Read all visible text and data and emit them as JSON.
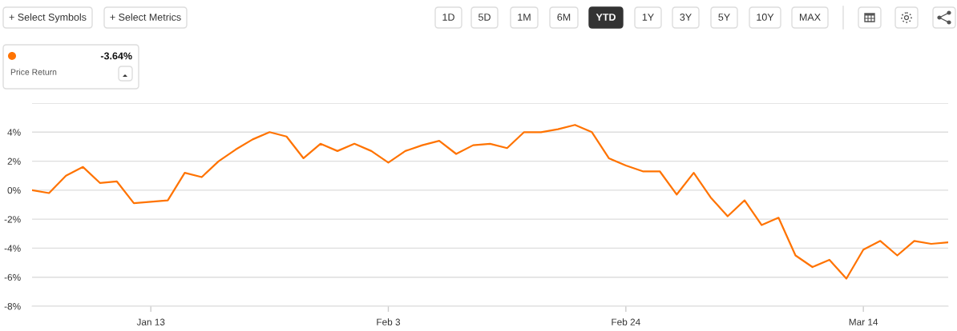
{
  "chart_data": {
    "type": "line",
    "categories": [
      null,
      null,
      null,
      null,
      null,
      null,
      null,
      "Jan 13",
      null,
      null,
      null,
      null,
      null,
      null,
      null,
      null,
      null,
      null,
      null,
      null,
      null,
      "Feb 3",
      null,
      null,
      null,
      null,
      null,
      null,
      null,
      null,
      null,
      null,
      null,
      null,
      null,
      "Feb 24",
      null,
      null,
      null,
      null,
      null,
      null,
      null,
      null,
      null,
      null,
      null,
      null,
      null,
      "Mar 14",
      null,
      null,
      null,
      null,
      null
    ],
    "series": [
      {
        "color": "#ff7300",
        "values": [
          0.0,
          -0.2,
          1.0,
          1.6,
          0.5,
          0.6,
          -0.9,
          -0.8,
          -0.7,
          1.2,
          0.9,
          2.0,
          2.8,
          3.5,
          4.0,
          3.7,
          2.2,
          3.2,
          2.7,
          3.2,
          2.7,
          1.9,
          2.7,
          3.1,
          3.4,
          2.5,
          3.1,
          3.2,
          2.9,
          4.0,
          4.0,
          4.2,
          4.5,
          4.0,
          2.2,
          1.7,
          1.3,
          1.3,
          -0.3,
          1.2,
          -0.5,
          -1.8,
          -0.7,
          -2.4,
          -1.9,
          -4.5,
          -5.3,
          -4.8,
          -6.1,
          -4.1,
          -3.5,
          -4.5,
          -3.5,
          -3.7,
          -3.6
        ]
      }
    ],
    "ylim": [
      -8,
      6
    ],
    "yticks": [
      {
        "value": -8,
        "label": "-8%"
      },
      {
        "value": -6,
        "label": "-6%"
      },
      {
        "value": -4,
        "label": "-4%"
      },
      {
        "value": -2,
        "label": "-2%"
      },
      {
        "value": 0,
        "label": "0%"
      },
      {
        "value": 2,
        "label": "2%"
      },
      {
        "value": 4,
        "label": "4%"
      },
      {
        "value": 6,
        "label": null
      }
    ],
    "grid": "y",
    "annotations": [
      "+ Select Symbols",
      "+ Select Metrics",
      "1D",
      "5D",
      "1M",
      "6M",
      "YTD",
      "1Y",
      "3Y",
      "5Y",
      "10Y",
      "MAX",
      "-3.64%",
      "Price Return"
    ]
  }
}
